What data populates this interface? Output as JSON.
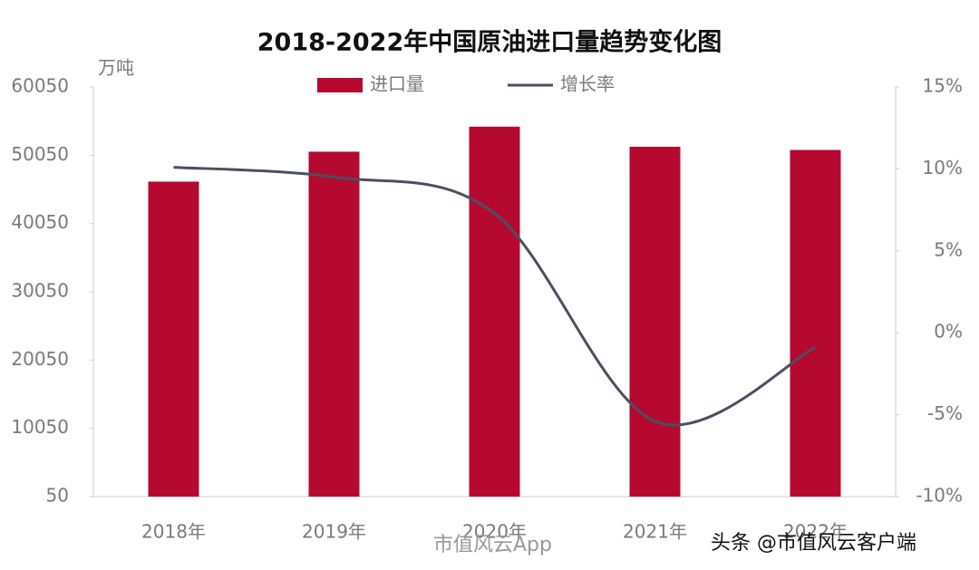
{
  "chart_data": {
    "type": "bar-line",
    "title": "2018-2022年中国原油进口量趋势变化图",
    "y_unit": "万吨",
    "categories": [
      "2018年",
      "2019年",
      "2020年",
      "2021年",
      "2022年"
    ],
    "series": [
      {
        "name": "进口量",
        "type": "bar",
        "color": "#b5092f",
        "values": [
          46189,
          50572,
          54239,
          51298,
          50828
        ]
      },
      {
        "name": "增长率",
        "type": "line",
        "axis": "y2",
        "color": "#4a5060",
        "values": [
          10.1,
          9.5,
          7.3,
          -5.4,
          -0.9
        ]
      }
    ],
    "ylim": [
      50,
      60050
    ],
    "yticks": [
      50,
      10050,
      20050,
      30050,
      40050,
      50050,
      60050
    ],
    "y2lim": [
      -10,
      15
    ],
    "y2ticks": [
      {
        "value": -10,
        "label": "-10%"
      },
      {
        "value": -5,
        "label": "-5%"
      },
      {
        "value": 0,
        "label": "0%"
      },
      {
        "value": 5,
        "label": "5%"
      },
      {
        "value": 10,
        "label": "10%"
      },
      {
        "value": 15,
        "label": "15%"
      }
    ],
    "watermarks": [
      "市值风云App",
      "头条 @市值风云客户端"
    ]
  }
}
